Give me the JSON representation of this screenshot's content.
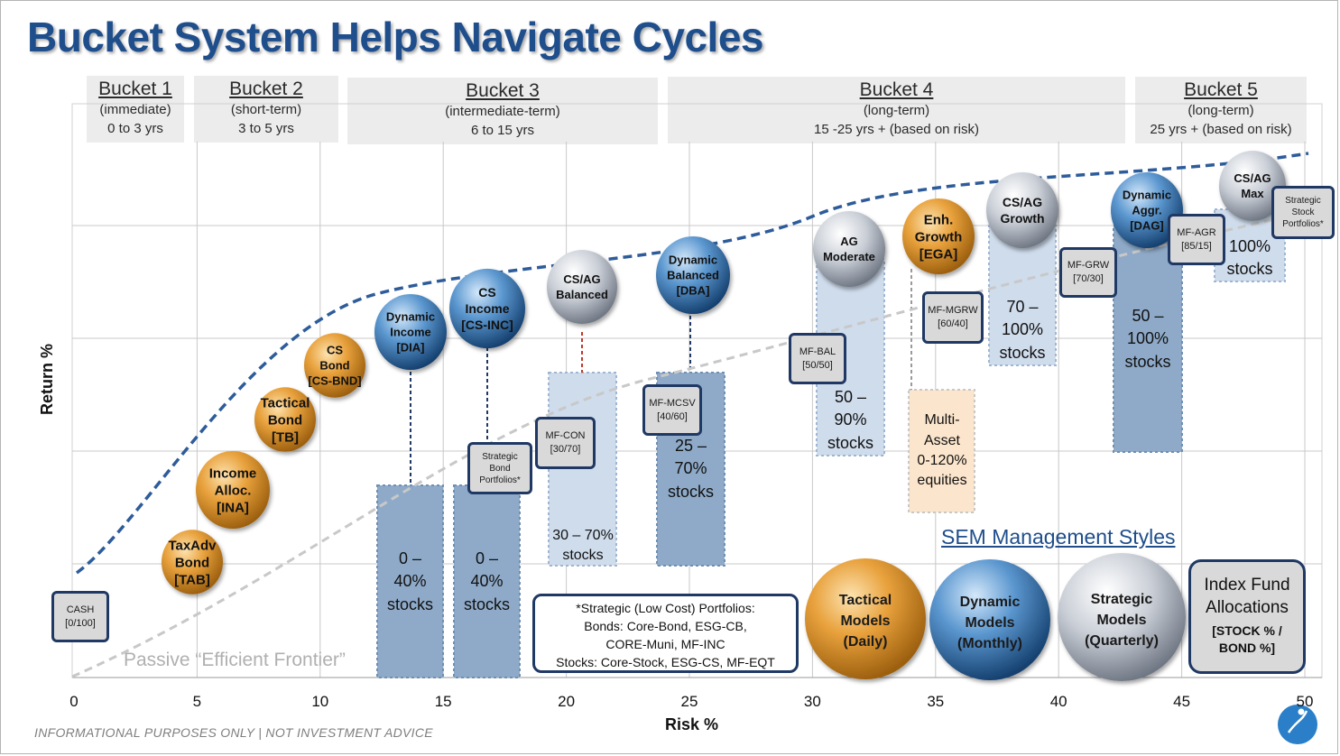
{
  "title": "Bucket System Helps Navigate Cycles",
  "buckets": [
    {
      "name": "Bucket 1",
      "sub1": "(immediate)",
      "sub2": "0 to 3 yrs"
    },
    {
      "name": "Bucket 2",
      "sub1": "(short-term)",
      "sub2": "3 to 5 yrs"
    },
    {
      "name": "Bucket 3",
      "sub1": "(intermediate-term)",
      "sub2": "6 to 15 yrs"
    },
    {
      "name": "Bucket 4",
      "sub1": "(long-term)",
      "sub2": "15 -25 yrs + (based on risk)"
    },
    {
      "name": "Bucket 5",
      "sub1": "(long-term)",
      "sub2": "25 yrs + (based on risk)"
    }
  ],
  "chart_data": {
    "type": "scatter",
    "xlabel": "Risk %",
    "ylabel": "Return %",
    "xlim": [
      0,
      50
    ],
    "xticks": [
      0,
      5,
      10,
      15,
      20,
      25,
      30,
      35,
      40,
      45,
      50
    ],
    "xtick_labels": [
      "0",
      "5",
      "10",
      "15",
      "20",
      "25",
      "30",
      "35",
      "40",
      "45",
      "50"
    ],
    "grid": true,
    "curves": [
      {
        "name": "SEM efficient frontier",
        "style": "dashed",
        "color": "#2e5c9a"
      },
      {
        "name": "Passive “Efficient Frontier”",
        "style": "dashed",
        "color": "#c8c8c8"
      }
    ],
    "passive_label": "Passive “Efficient Frontier”"
  },
  "balls": [
    {
      "id": "tab",
      "lines": [
        "TaxAdv",
        "Bond",
        "[TAB]"
      ],
      "style": "gold"
    },
    {
      "id": "ina",
      "lines": [
        "Income",
        "Alloc.",
        "[INA]"
      ],
      "style": "gold"
    },
    {
      "id": "tb",
      "lines": [
        "Tactical",
        "Bond",
        "[TB]"
      ],
      "style": "gold"
    },
    {
      "id": "csbnd",
      "lines": [
        "CS",
        "Bond",
        "[CS-BND]"
      ],
      "style": "gold"
    },
    {
      "id": "dia",
      "lines": [
        "Dynamic",
        "Income",
        "[DIA]"
      ],
      "style": "blue"
    },
    {
      "id": "csinc",
      "lines": [
        "CS",
        "Income",
        "[CS-INC]"
      ],
      "style": "blue"
    },
    {
      "id": "csagbal",
      "lines": [
        "CS/AG",
        "Balanced"
      ],
      "style": "silver"
    },
    {
      "id": "dba",
      "lines": [
        "Dynamic",
        "Balanced",
        "[DBA]"
      ],
      "style": "blue"
    },
    {
      "id": "agmod",
      "lines": [
        "AG",
        "Moderate"
      ],
      "style": "silver"
    },
    {
      "id": "ega",
      "lines": [
        "Enh.",
        "Growth",
        "[EGA]"
      ],
      "style": "gold"
    },
    {
      "id": "csaggrowth",
      "lines": [
        "CS/AG",
        "Growth"
      ],
      "style": "silver"
    },
    {
      "id": "dag",
      "lines": [
        "Dynamic",
        "Aggr.",
        "[DAG]"
      ],
      "style": "blue"
    },
    {
      "id": "csagmax",
      "lines": [
        "CS/AG",
        "Max"
      ],
      "style": "silver"
    }
  ],
  "boxes": {
    "cash": {
      "line1": "CASH",
      "line2": "[0/100]"
    },
    "sbp": {
      "line1": "Strategic",
      "line2": "Bond",
      "line3": "Portfolios*"
    },
    "mfcon": {
      "line1": "MF-CON",
      "line2": "[30/70]"
    },
    "mfmcsv": {
      "line1": "MF-MCSV",
      "line2": "[40/60]"
    },
    "mfbal": {
      "line1": "MF-BAL",
      "line2": "[50/50]"
    },
    "mfmgrw": {
      "line1": "MF-MGRW",
      "line2": "[60/40]"
    },
    "mfgrw": {
      "line1": "MF-GRW",
      "line2": "[70/30]"
    },
    "mfagr": {
      "line1": "MF-AGR",
      "line2": "[85/15]"
    },
    "ssp": {
      "line1": "Strategic",
      "line2": "Stock",
      "line3": "Portfolios*"
    }
  },
  "stock_ranges": {
    "b1": {
      "l1": "0 –",
      "l2": "40%",
      "l3": "stocks"
    },
    "b2": {
      "l1": "0 –",
      "l2": "40%",
      "l3": "stocks"
    },
    "b3": {
      "l1": "30 – 70%",
      "l2": "stocks"
    },
    "b4": {
      "l1": "25 –",
      "l2": "70%",
      "l3": "stocks"
    },
    "b5": {
      "l1": "50 –",
      "l2": "90%",
      "l3": "stocks"
    },
    "b6": {
      "l1": "Multi-",
      "l2": "Asset",
      "l3": "0-120%",
      "l4": "equities"
    },
    "b7": {
      "l1": "70 –",
      "l2": "100%",
      "l3": "stocks"
    },
    "b8": {
      "l1": "50 –",
      "l2": "100%",
      "l3": "stocks"
    },
    "b9": {
      "l1": "100%",
      "l2": "stocks"
    }
  },
  "strategic_note": {
    "l1": "*Strategic (Low Cost) Portfolios:",
    "l2": "Bonds: Core-Bond, ESG-CB,",
    "l3": "CORE-Muni, MF-INC",
    "l4": "Stocks: Core-Stock, ESG-CS, MF-EQT"
  },
  "sem_styles": {
    "title": "SEM Management Styles",
    "tactical": [
      "Tactical",
      "Models",
      "(Daily)"
    ],
    "dynamic": [
      "Dynamic",
      "Models",
      "(Monthly)"
    ],
    "strategic": [
      "Strategic",
      "Models",
      "(Quarterly)"
    ]
  },
  "index_box": {
    "l1": "Index Fund",
    "l2": "Allocations",
    "l3": "[STOCK % /",
    "l4": "BOND %]"
  },
  "footer": "INFORMATIONAL PURPOSES ONLY | NOT INVESTMENT ADVICE",
  "colors": {
    "title": "#1f4e8c",
    "navy": "#1f3864",
    "bar_dark": "#8eaac8",
    "bar_light": "#cfdcec",
    "orange_light": "#fbe5cc"
  }
}
